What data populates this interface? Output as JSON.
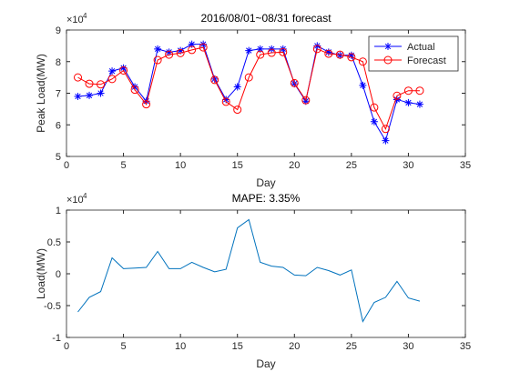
{
  "chart_data": [
    {
      "type": "line",
      "title": "2016/08/01~08/31 forecast",
      "xlabel": "Day",
      "ylabel": "Peak Load(MW)",
      "y_exponent_base": "×10",
      "y_exponent_power": "4",
      "xlim": [
        0,
        35
      ],
      "xticks": [
        0,
        5,
        10,
        15,
        20,
        25,
        30,
        35
      ],
      "ylim": [
        5,
        9
      ],
      "yticks": [
        5,
        6,
        7,
        8,
        9
      ],
      "legend": "northeast",
      "x": [
        1,
        2,
        3,
        4,
        5,
        6,
        7,
        8,
        9,
        10,
        11,
        12,
        13,
        14,
        15,
        16,
        17,
        18,
        19,
        20,
        21,
        22,
        23,
        24,
        25,
        26,
        27,
        28,
        29,
        30,
        31
      ],
      "series": [
        {
          "name": "Actual",
          "color": "#0000ff",
          "marker": "asterisk",
          "values": [
            6.9,
            6.93,
            7.0,
            7.7,
            7.8,
            7.2,
            6.75,
            8.4,
            8.3,
            8.35,
            8.55,
            8.55,
            7.45,
            6.8,
            7.2,
            8.35,
            8.4,
            8.4,
            8.4,
            7.3,
            6.75,
            8.5,
            8.3,
            8.2,
            8.2,
            7.25,
            6.1,
            5.5,
            6.8,
            6.7,
            6.65
          ]
        },
        {
          "name": "Forecast",
          "color": "#ff0000",
          "marker": "circle",
          "values": [
            7.5,
            7.3,
            7.28,
            7.45,
            7.72,
            7.11,
            6.65,
            8.05,
            8.22,
            8.27,
            8.37,
            8.45,
            7.42,
            6.73,
            6.48,
            7.5,
            8.22,
            8.28,
            8.3,
            7.32,
            6.78,
            8.4,
            8.25,
            8.22,
            8.14,
            8.0,
            6.55,
            5.87,
            6.92,
            7.08,
            7.08
          ]
        }
      ]
    },
    {
      "type": "line",
      "title": "MAPE: 3.35%",
      "xlabel": "Day",
      "ylabel": "Load(MW)",
      "y_exponent_base": "×10",
      "y_exponent_power": "4",
      "xlim": [
        0,
        35
      ],
      "xticks": [
        0,
        5,
        10,
        15,
        20,
        25,
        30,
        35
      ],
      "ylim": [
        -1,
        1
      ],
      "yticks": [
        -1,
        -0.5,
        0,
        0.5,
        1
      ],
      "x": [
        1,
        2,
        3,
        4,
        5,
        6,
        7,
        8,
        9,
        10,
        11,
        12,
        13,
        14,
        15,
        16,
        17,
        18,
        19,
        20,
        21,
        22,
        23,
        24,
        25,
        26,
        27,
        28,
        29,
        30,
        31
      ],
      "series": [
        {
          "color": "#0072bd",
          "marker": "none",
          "values": [
            -0.6,
            -0.37,
            -0.28,
            0.25,
            0.08,
            0.09,
            0.1,
            0.35,
            0.08,
            0.08,
            0.18,
            0.1,
            0.03,
            0.07,
            0.72,
            0.85,
            0.18,
            0.12,
            0.1,
            -0.02,
            -0.03,
            0.1,
            0.05,
            -0.02,
            0.06,
            -0.75,
            -0.45,
            -0.37,
            -0.12,
            -0.38,
            -0.43
          ]
        }
      ]
    }
  ]
}
